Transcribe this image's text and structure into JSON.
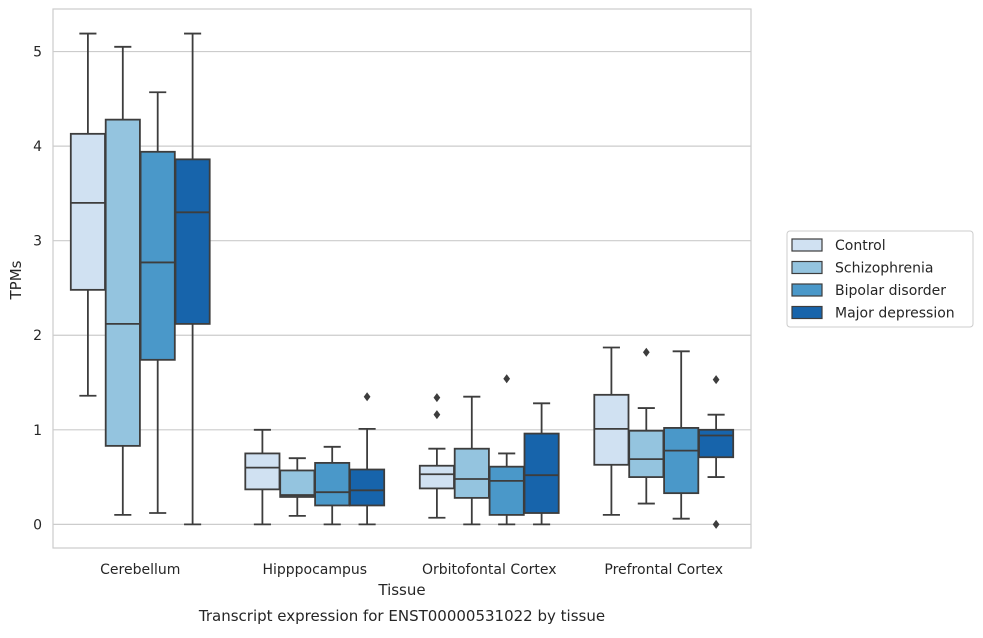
{
  "caption": "Transcript expression for ENST00000531022 by tissue",
  "chart_data": {
    "type": "boxplot",
    "title": "",
    "xlabel": "Tissue",
    "ylabel": "TPMs",
    "ylim": [
      -0.25,
      5.45
    ],
    "y_ticks": [
      0,
      1,
      2,
      3,
      4,
      5
    ],
    "y_tick_labels": [
      "0",
      "1",
      "2",
      "3",
      "4",
      "5"
    ],
    "grid": "horizontal",
    "legend_position": "right",
    "categories": [
      "Cerebellum",
      "Hipppocampus",
      "Orbitofontal Cortex",
      "Prefrontal Cortex"
    ],
    "series": [
      {
        "name": "Control",
        "color": "#d0e1f2",
        "boxes": [
          {
            "whislo": 1.36,
            "q1": 2.48,
            "med": 3.4,
            "q3": 4.13,
            "whishi": 5.19,
            "fliers": []
          },
          {
            "whislo": 0.0,
            "q1": 0.37,
            "med": 0.6,
            "q3": 0.75,
            "whishi": 1.0,
            "fliers": []
          },
          {
            "whislo": 0.07,
            "q1": 0.38,
            "med": 0.53,
            "q3": 0.62,
            "whishi": 0.8,
            "fliers": [
              1.16,
              1.34
            ]
          },
          {
            "whislo": 0.1,
            "q1": 0.63,
            "med": 1.01,
            "q3": 1.37,
            "whishi": 1.87,
            "fliers": []
          }
        ]
      },
      {
        "name": "Schizophrenia",
        "color": "#94c4df",
        "boxes": [
          {
            "whislo": 0.1,
            "q1": 0.83,
            "med": 2.12,
            "q3": 4.28,
            "whishi": 5.05,
            "fliers": []
          },
          {
            "whislo": 0.09,
            "q1": 0.29,
            "med": 0.31,
            "q3": 0.57,
            "whishi": 0.7,
            "fliers": []
          },
          {
            "whislo": 0.0,
            "q1": 0.28,
            "med": 0.48,
            "q3": 0.8,
            "whishi": 1.35,
            "fliers": []
          },
          {
            "whislo": 0.22,
            "q1": 0.5,
            "med": 0.69,
            "q3": 0.99,
            "whishi": 1.23,
            "fliers": [
              1.82
            ]
          }
        ]
      },
      {
        "name": "Bipolar disorder",
        "color": "#4a98c9",
        "boxes": [
          {
            "whislo": 0.12,
            "q1": 1.74,
            "med": 2.77,
            "q3": 3.94,
            "whishi": 4.57,
            "fliers": []
          },
          {
            "whislo": 0.0,
            "q1": 0.2,
            "med": 0.34,
            "q3": 0.65,
            "whishi": 0.82,
            "fliers": []
          },
          {
            "whislo": 0.0,
            "q1": 0.1,
            "med": 0.46,
            "q3": 0.61,
            "whishi": 0.75,
            "fliers": [
              1.54
            ]
          },
          {
            "whislo": 0.06,
            "q1": 0.33,
            "med": 0.78,
            "q3": 1.02,
            "whishi": 1.83,
            "fliers": []
          }
        ]
      },
      {
        "name": "Major depression",
        "color": "#1764ab",
        "boxes": [
          {
            "whislo": 0.0,
            "q1": 2.12,
            "med": 3.3,
            "q3": 3.86,
            "whishi": 5.19,
            "fliers": []
          },
          {
            "whislo": 0.0,
            "q1": 0.2,
            "med": 0.36,
            "q3": 0.58,
            "whishi": 1.01,
            "fliers": [
              1.35
            ]
          },
          {
            "whislo": 0.0,
            "q1": 0.12,
            "med": 0.52,
            "q3": 0.96,
            "whishi": 1.28,
            "fliers": []
          },
          {
            "whislo": 0.5,
            "q1": 0.71,
            "med": 0.94,
            "q3": 1.0,
            "whishi": 1.16,
            "fliers": [
              0.0,
              1.53
            ]
          }
        ]
      }
    ]
  }
}
